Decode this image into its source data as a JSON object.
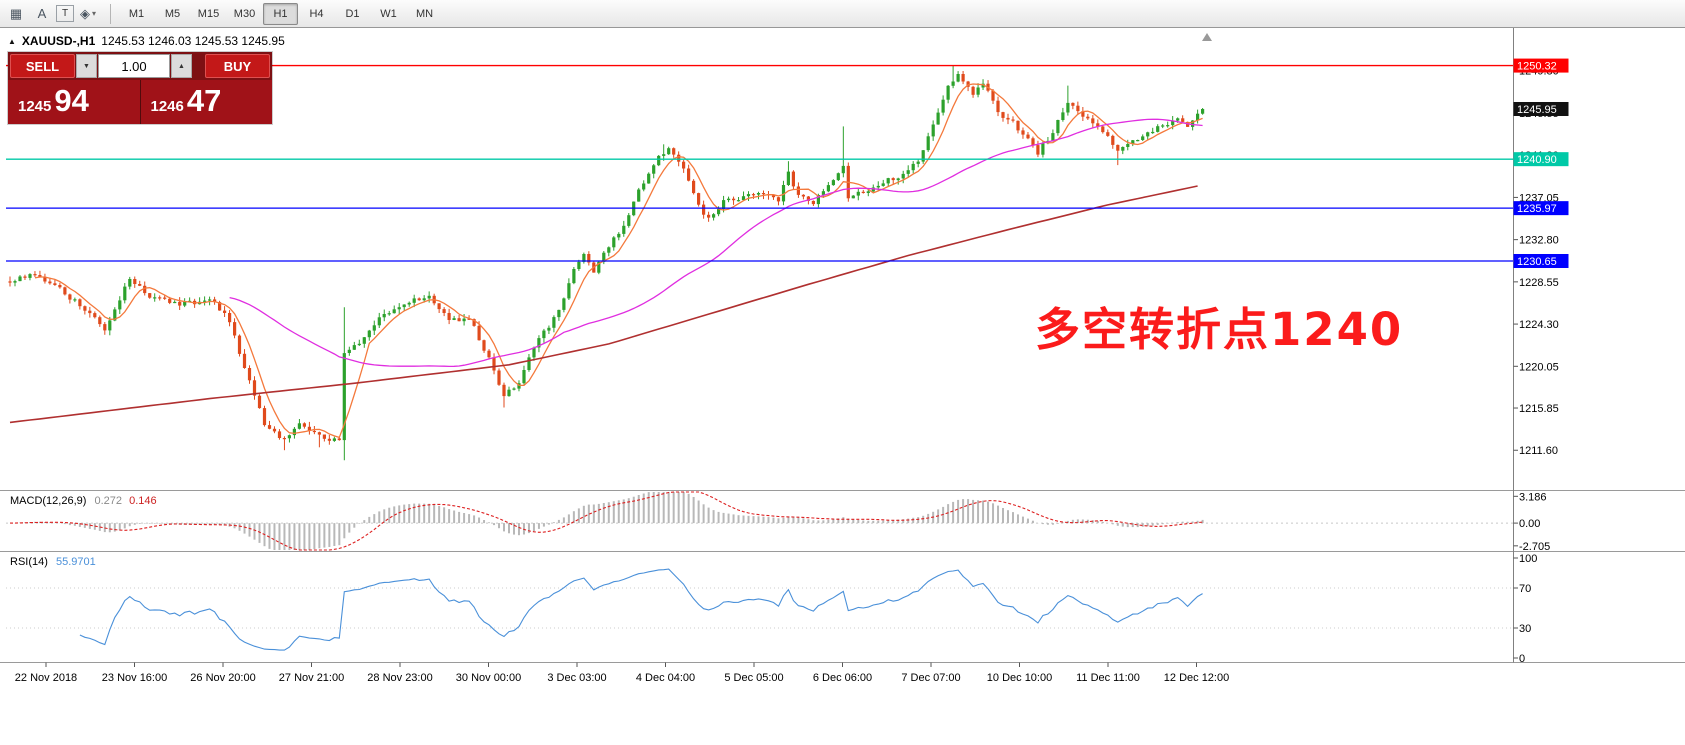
{
  "toolbar": {
    "icons": [
      {
        "name": "chart-window-icon",
        "glyph": "▦"
      },
      {
        "name": "cursor-icon",
        "glyph": "A"
      },
      {
        "name": "text-tool-icon",
        "glyph": "T"
      },
      {
        "name": "shapes-tool-icon",
        "glyph": "◈"
      },
      {
        "name": "dropdown-caret-icon",
        "glyph": "▾"
      }
    ],
    "timeframes": [
      "M1",
      "M5",
      "M15",
      "M30",
      "H1",
      "H4",
      "D1",
      "W1",
      "MN"
    ],
    "active_timeframe": "H1"
  },
  "chart_header": {
    "toggle_glyph": "▲",
    "symbol_period": "XAUUSD-,H1",
    "ohlc_text": "1245.53 1246.03 1245.53 1245.95"
  },
  "trade_panel": {
    "sell_label": "SELL",
    "buy_label": "BUY",
    "lot_value": "1.00",
    "spinner_down_glyph": "▼",
    "spinner_up_glyph": "▲",
    "sell_price_main": "1245",
    "sell_price_frac": "94",
    "buy_price_main": "1246",
    "buy_price_frac": "47",
    "colors": {
      "panel_bg": "#7d1013",
      "button_bg": "#c31818",
      "price_bg": "#a01218"
    }
  },
  "annotation": {
    "text": "多空转折点1240",
    "color": "#fb1b1b"
  },
  "chart_data": {
    "type": "candlestick",
    "symbol": "XAUUSD-",
    "timeframe": "H1",
    "current_ohlc": {
      "open": "1245.53",
      "high": "1246.03",
      "low": "1245.53",
      "close": "1245.95"
    },
    "n_candles": 240,
    "ylim": [
      1207.8,
      1253.7
    ],
    "price_ticks": [
      {
        "value": 1249.8,
        "label": "1249.80"
      },
      {
        "value": 1245.55,
        "label": "1245.55"
      },
      {
        "value": 1241.3,
        "label": "1241.30"
      },
      {
        "value": 1237.05,
        "label": "1237.05"
      },
      {
        "value": 1232.8,
        "label": "1232.80"
      },
      {
        "value": 1228.55,
        "label": "1228.55"
      },
      {
        "value": 1224.3,
        "label": "1224.30"
      },
      {
        "value": 1220.05,
        "label": "1220.05"
      },
      {
        "value": 1215.85,
        "label": "1215.85"
      },
      {
        "value": 1211.6,
        "label": "1211.60"
      }
    ],
    "h_lines": [
      {
        "price": 1250.32,
        "label": "1250.32",
        "color": "#ff0000"
      },
      {
        "price": 1240.9,
        "label": "1240.90",
        "color": "#00c9a7"
      },
      {
        "price": 1235.97,
        "label": "1235.97",
        "color": "#0000ff"
      },
      {
        "price": 1230.65,
        "label": "1230.65",
        "color": "#0000ff"
      }
    ],
    "current_price_tag": {
      "value": 1245.95,
      "label": "1245.95",
      "bg": "#111111",
      "fg": "#ffffff"
    },
    "time_labels": [
      "22 Nov 2018",
      "23 Nov 16:00",
      "26 Nov 20:00",
      "27 Nov 21:00",
      "28 Nov 23:00",
      "30 Nov 00:00",
      "3 Dec 03:00",
      "4 Dec 04:00",
      "5 Dec 05:00",
      "6 Dec 06:00",
      "7 Dec 07:00",
      "10 Dec 10:00",
      "11 Dec 11:00",
      "12 Dec 12:00"
    ],
    "close_anchors": [
      [
        0,
        1228.6
      ],
      [
        4,
        1229.3
      ],
      [
        9,
        1228.2
      ],
      [
        14,
        1226.2
      ],
      [
        19,
        1223.8
      ],
      [
        24,
        1228.9
      ],
      [
        28,
        1227.0
      ],
      [
        34,
        1226.2
      ],
      [
        40,
        1226.9
      ],
      [
        44,
        1224.6
      ],
      [
        47,
        1219.8
      ],
      [
        51,
        1214.2
      ],
      [
        55,
        1212.6
      ],
      [
        58,
        1214.3
      ],
      [
        62,
        1213.0
      ],
      [
        66,
        1212.4
      ],
      [
        67,
        1221.5
      ],
      [
        70,
        1222.3
      ],
      [
        75,
        1225.4
      ],
      [
        80,
        1226.6
      ],
      [
        84,
        1226.9
      ],
      [
        88,
        1224.6
      ],
      [
        92,
        1224.9
      ],
      [
        96,
        1220.8
      ],
      [
        99,
        1216.9
      ],
      [
        102,
        1218.6
      ],
      [
        106,
        1222.8
      ],
      [
        110,
        1225.5
      ],
      [
        113,
        1229.8
      ],
      [
        115,
        1231.6
      ],
      [
        117,
        1229.6
      ],
      [
        120,
        1232.2
      ],
      [
        123,
        1234.0
      ],
      [
        126,
        1237.6
      ],
      [
        130,
        1241.3
      ],
      [
        132,
        1241.8
      ],
      [
        135,
        1239.8
      ],
      [
        138,
        1236.2
      ],
      [
        140,
        1234.9
      ],
      [
        143,
        1236.6
      ],
      [
        147,
        1237.1
      ],
      [
        151,
        1237.6
      ],
      [
        154,
        1236.7
      ],
      [
        156,
        1239.6
      ],
      [
        158,
        1237.2
      ],
      [
        161,
        1236.6
      ],
      [
        164,
        1238.1
      ],
      [
        167,
        1240.2
      ],
      [
        168,
        1237.0
      ],
      [
        171,
        1237.6
      ],
      [
        175,
        1238.7
      ],
      [
        179,
        1239.2
      ],
      [
        182,
        1240.8
      ],
      [
        185,
        1244.2
      ],
      [
        188,
        1248.2
      ],
      [
        190,
        1249.5
      ],
      [
        193,
        1247.6
      ],
      [
        195,
        1248.6
      ],
      [
        198,
        1245.6
      ],
      [
        201,
        1244.6
      ],
      [
        204,
        1242.9
      ],
      [
        206,
        1241.6
      ],
      [
        209,
        1243.6
      ],
      [
        212,
        1246.8
      ],
      [
        215,
        1245.4
      ],
      [
        218,
        1244.3
      ],
      [
        220,
        1243.0
      ],
      [
        222,
        1241.9
      ],
      [
        225,
        1242.7
      ],
      [
        228,
        1243.6
      ],
      [
        231,
        1244.2
      ],
      [
        234,
        1244.9
      ],
      [
        236,
        1244.3
      ],
      [
        239,
        1245.95
      ]
    ],
    "wick_events": [
      {
        "i": 55,
        "low": 1211.6
      },
      {
        "i": 62,
        "low": 1211.9
      },
      {
        "i": 67,
        "high": 1226.0,
        "low": 1210.6
      },
      {
        "i": 99,
        "low": 1215.9
      },
      {
        "i": 131,
        "high": 1242.4
      },
      {
        "i": 156,
        "high": 1240.7
      },
      {
        "i": 167,
        "high": 1244.2
      },
      {
        "i": 189,
        "high": 1250.3
      },
      {
        "i": 212,
        "high": 1248.3
      },
      {
        "i": 222,
        "low": 1240.3
      }
    ],
    "ma_fast_period": 6,
    "ma_mid_period": 45,
    "ma_slow_anchors": [
      [
        0,
        1214.4
      ],
      [
        40,
        1216.8
      ],
      [
        70,
        1218.4
      ],
      [
        100,
        1220.2
      ],
      [
        120,
        1222.3
      ],
      [
        140,
        1225.3
      ],
      [
        160,
        1228.3
      ],
      [
        180,
        1231.2
      ],
      [
        200,
        1233.8
      ],
      [
        220,
        1236.3
      ],
      [
        239,
        1238.3
      ]
    ],
    "colors": {
      "up": "#2ca12c",
      "down": "#e04a1c",
      "ma_fast": "#f4793c",
      "ma_mid": "#e02ee0",
      "ma_slow": "#b03030"
    }
  },
  "macd": {
    "label": "MACD(12,26,9)",
    "value_main": "0.272",
    "value_signal": "0.146",
    "fast": 12,
    "slow": 26,
    "signal": 9,
    "ticks": [
      {
        "value": 3.186,
        "label": "3.186"
      },
      {
        "value": 0,
        "label": "0.00"
      },
      {
        "value": -2.705,
        "label": "-2.705"
      }
    ],
    "colors": {
      "hist": "#b8b8b8",
      "signal": "#dd2020"
    }
  },
  "rsi": {
    "label": "RSI(14)",
    "value": "55.9701",
    "period": 14,
    "ticks": [
      {
        "value": 100,
        "label": "100"
      },
      {
        "value": 70,
        "label": "70"
      },
      {
        "value": 30,
        "label": "30"
      },
      {
        "value": 0,
        "label": "0"
      }
    ],
    "levels": [
      70,
      30
    ],
    "color": "#4a90d9"
  }
}
